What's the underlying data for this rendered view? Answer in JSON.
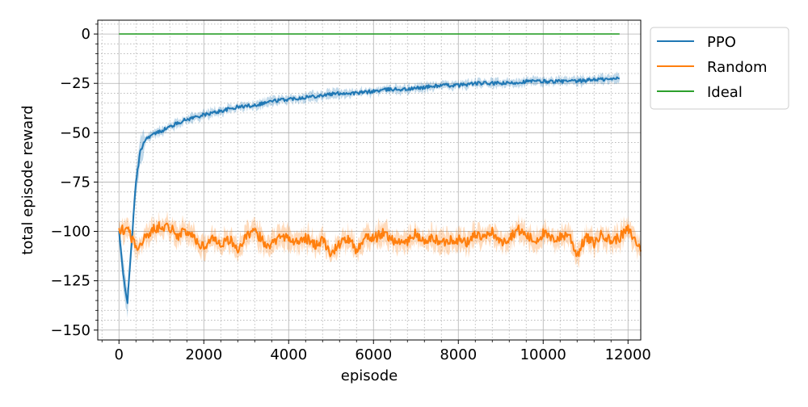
{
  "chart_data": {
    "type": "line",
    "title": "",
    "xlabel": "episode",
    "ylabel": "total episode reward",
    "xlim": [
      -500,
      12300
    ],
    "ylim": [
      -155,
      7
    ],
    "x_ticks": [
      0,
      2000,
      4000,
      6000,
      8000,
      10000,
      12000
    ],
    "x_tick_labels": [
      "0",
      "2000",
      "4000",
      "6000",
      "8000",
      "10000",
      "12000"
    ],
    "y_ticks": [
      0,
      -25,
      -50,
      -75,
      -100,
      -125,
      -150
    ],
    "y_tick_labels": [
      "0",
      "−25",
      "−50",
      "−75",
      "−100",
      "−125",
      "−150"
    ],
    "grid": "major solid, minor dotted",
    "legend_position": "outside upper right",
    "series": [
      {
        "name": "PPO",
        "color": "#1f77b4",
        "shaded_band": true,
        "x": [
          0,
          100,
          200,
          300,
          400,
          500,
          600,
          700,
          800,
          1000,
          1200,
          1500,
          1800,
          2000,
          2400,
          2800,
          3200,
          3600,
          4000,
          4400,
          4800,
          5200,
          5600,
          6000,
          6400,
          6800,
          7200,
          7600,
          8000,
          8400,
          8800,
          9200,
          9600,
          10000,
          10400,
          10800,
          11200,
          11600,
          11800
        ],
        "y": [
          -100,
          -122,
          -136,
          -105,
          -75,
          -60,
          -54,
          -52,
          -51,
          -49,
          -47,
          -44,
          -42,
          -41,
          -39,
          -37,
          -36,
          -34,
          -33,
          -32,
          -31,
          -30,
          -30,
          -29,
          -28,
          -28,
          -27,
          -26,
          -26,
          -25,
          -25,
          -25,
          -24,
          -24,
          -24,
          -24,
          -23,
          -23,
          -22
        ]
      },
      {
        "name": "Random",
        "color": "#ff7f0e",
        "shaded_band": true,
        "x": [
          0,
          200,
          400,
          600,
          800,
          1000,
          1200,
          1400,
          1600,
          1800,
          2000,
          2200,
          2400,
          2600,
          2800,
          3000,
          3200,
          3400,
          3600,
          3800,
          4000,
          4200,
          4400,
          4600,
          4800,
          5000,
          5200,
          5400,
          5600,
          5800,
          6000,
          6200,
          6400,
          6600,
          6800,
          7000,
          7200,
          7400,
          7600,
          7800,
          8000,
          8200,
          8400,
          8600,
          8800,
          9000,
          9200,
          9400,
          9600,
          9800,
          10000,
          10200,
          10400,
          10600,
          10800,
          11000,
          11200,
          11400,
          11600,
          11800,
          12000,
          12300
        ],
        "y": [
          -100,
          -98,
          -108,
          -104,
          -99,
          -97,
          -98,
          -102,
          -100,
          -104,
          -108,
          -103,
          -106,
          -104,
          -109,
          -103,
          -100,
          -105,
          -107,
          -101,
          -104,
          -106,
          -103,
          -107,
          -104,
          -112,
          -106,
          -104,
          -110,
          -102,
          -104,
          -101,
          -103,
          -106,
          -105,
          -101,
          -106,
          -103,
          -106,
          -104,
          -104,
          -106,
          -101,
          -104,
          -100,
          -106,
          -103,
          -99,
          -102,
          -105,
          -101,
          -104,
          -103,
          -101,
          -112,
          -103,
          -106,
          -101,
          -105,
          -103,
          -99,
          -109
        ]
      },
      {
        "name": "Ideal",
        "color": "#2ca02c",
        "shaded_band": false,
        "x": [
          0,
          11800
        ],
        "y": [
          0,
          0
        ]
      }
    ]
  }
}
